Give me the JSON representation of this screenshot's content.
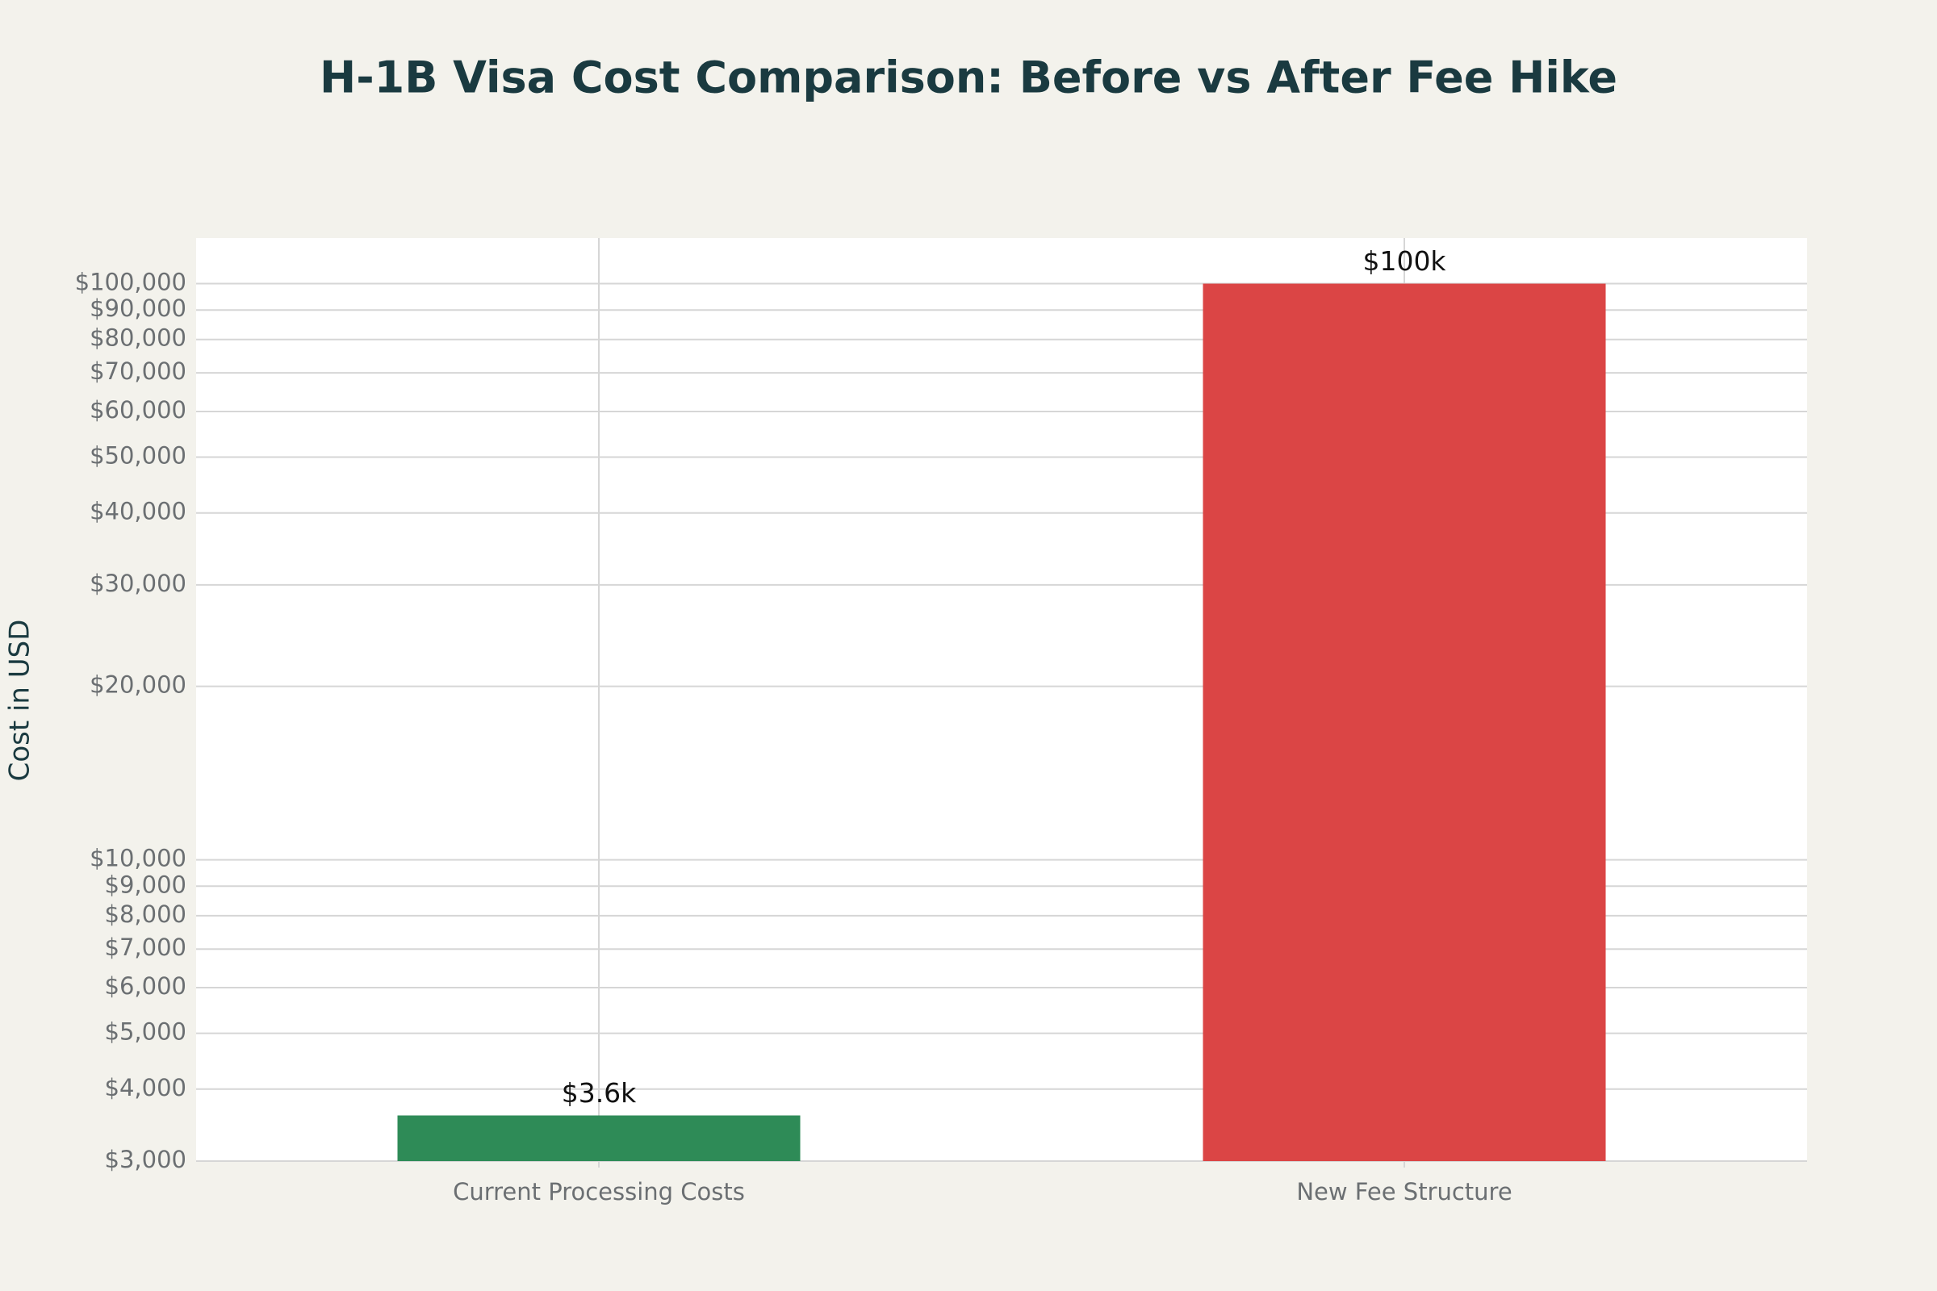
{
  "chart_data": {
    "type": "bar",
    "title": "H-1B Visa Cost Comparison: Before vs After Fee Hike",
    "y_label": "Cost in USD",
    "categories": [
      "Current Processing Costs",
      "New Fee Structure"
    ],
    "values": [
      3600,
      100000
    ],
    "value_labels": [
      "$3.6k",
      "$100k"
    ],
    "colors": [
      "#2e8b57",
      "#db4545"
    ],
    "yscale": "log",
    "ylim": [
      3000,
      120000
    ],
    "yticks": [
      {
        "value": 3000,
        "label": "$3,000"
      },
      {
        "value": 4000,
        "label": "$4,000"
      },
      {
        "value": 5000,
        "label": "$5,000"
      },
      {
        "value": 6000,
        "label": "$6,000"
      },
      {
        "value": 7000,
        "label": "$7,000"
      },
      {
        "value": 8000,
        "label": "$8,000"
      },
      {
        "value": 9000,
        "label": "$9,000"
      },
      {
        "value": 10000,
        "label": "$10,000"
      },
      {
        "value": 20000,
        "label": "$20,000"
      },
      {
        "value": 30000,
        "label": "$30,000"
      },
      {
        "value": 40000,
        "label": "$40,000"
      },
      {
        "value": 50000,
        "label": "$50,000"
      },
      {
        "value": 60000,
        "label": "$60,000"
      },
      {
        "value": 70000,
        "label": "$70,000"
      },
      {
        "value": 80000,
        "label": "$80,000"
      },
      {
        "value": 90000,
        "label": "$90,000"
      },
      {
        "value": 100000,
        "label": "$100,000"
      }
    ],
    "grid": true
  }
}
